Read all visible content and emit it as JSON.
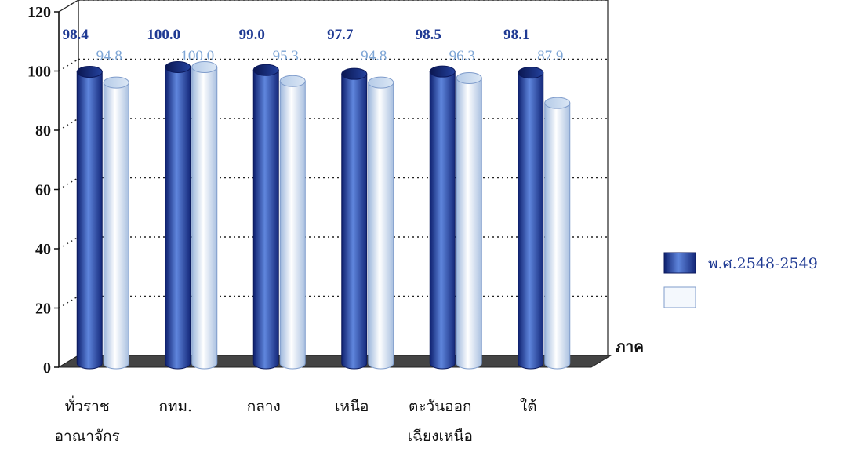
{
  "chart_data": {
    "type": "bar",
    "categories": [
      [
        "ทั่วราช",
        "อาณาจักร"
      ],
      [
        "กทม."
      ],
      [
        "กลาง"
      ],
      [
        "เหนือ"
      ],
      [
        "ตะวันออก",
        "เฉียงเหนือ"
      ],
      [
        "ใต้"
      ]
    ],
    "series": [
      {
        "name": "พ.ศ.2548-2549",
        "values": [
          98.4,
          100.0,
          99.0,
          97.7,
          98.5,
          98.1
        ],
        "labels": [
          "98.4",
          "100.0",
          "99.0",
          "97.7",
          "98.5",
          "98.1"
        ],
        "color": "#2a4fb8"
      },
      {
        "name": "",
        "values": [
          94.8,
          100.0,
          95.3,
          94.8,
          96.3,
          87.9
        ],
        "labels": [
          "94.8",
          "100.0",
          "95.3",
          "94.8",
          "96.3",
          "87.9"
        ],
        "color": "#eef4fb"
      }
    ],
    "yticks": [
      "0",
      "20",
      "40",
      "60",
      "80",
      "100",
      "120"
    ],
    "ylim": [
      0,
      120
    ],
    "xlabel": "ภาค",
    "ylabel": "",
    "title": "",
    "grid": true,
    "legend": "right"
  }
}
